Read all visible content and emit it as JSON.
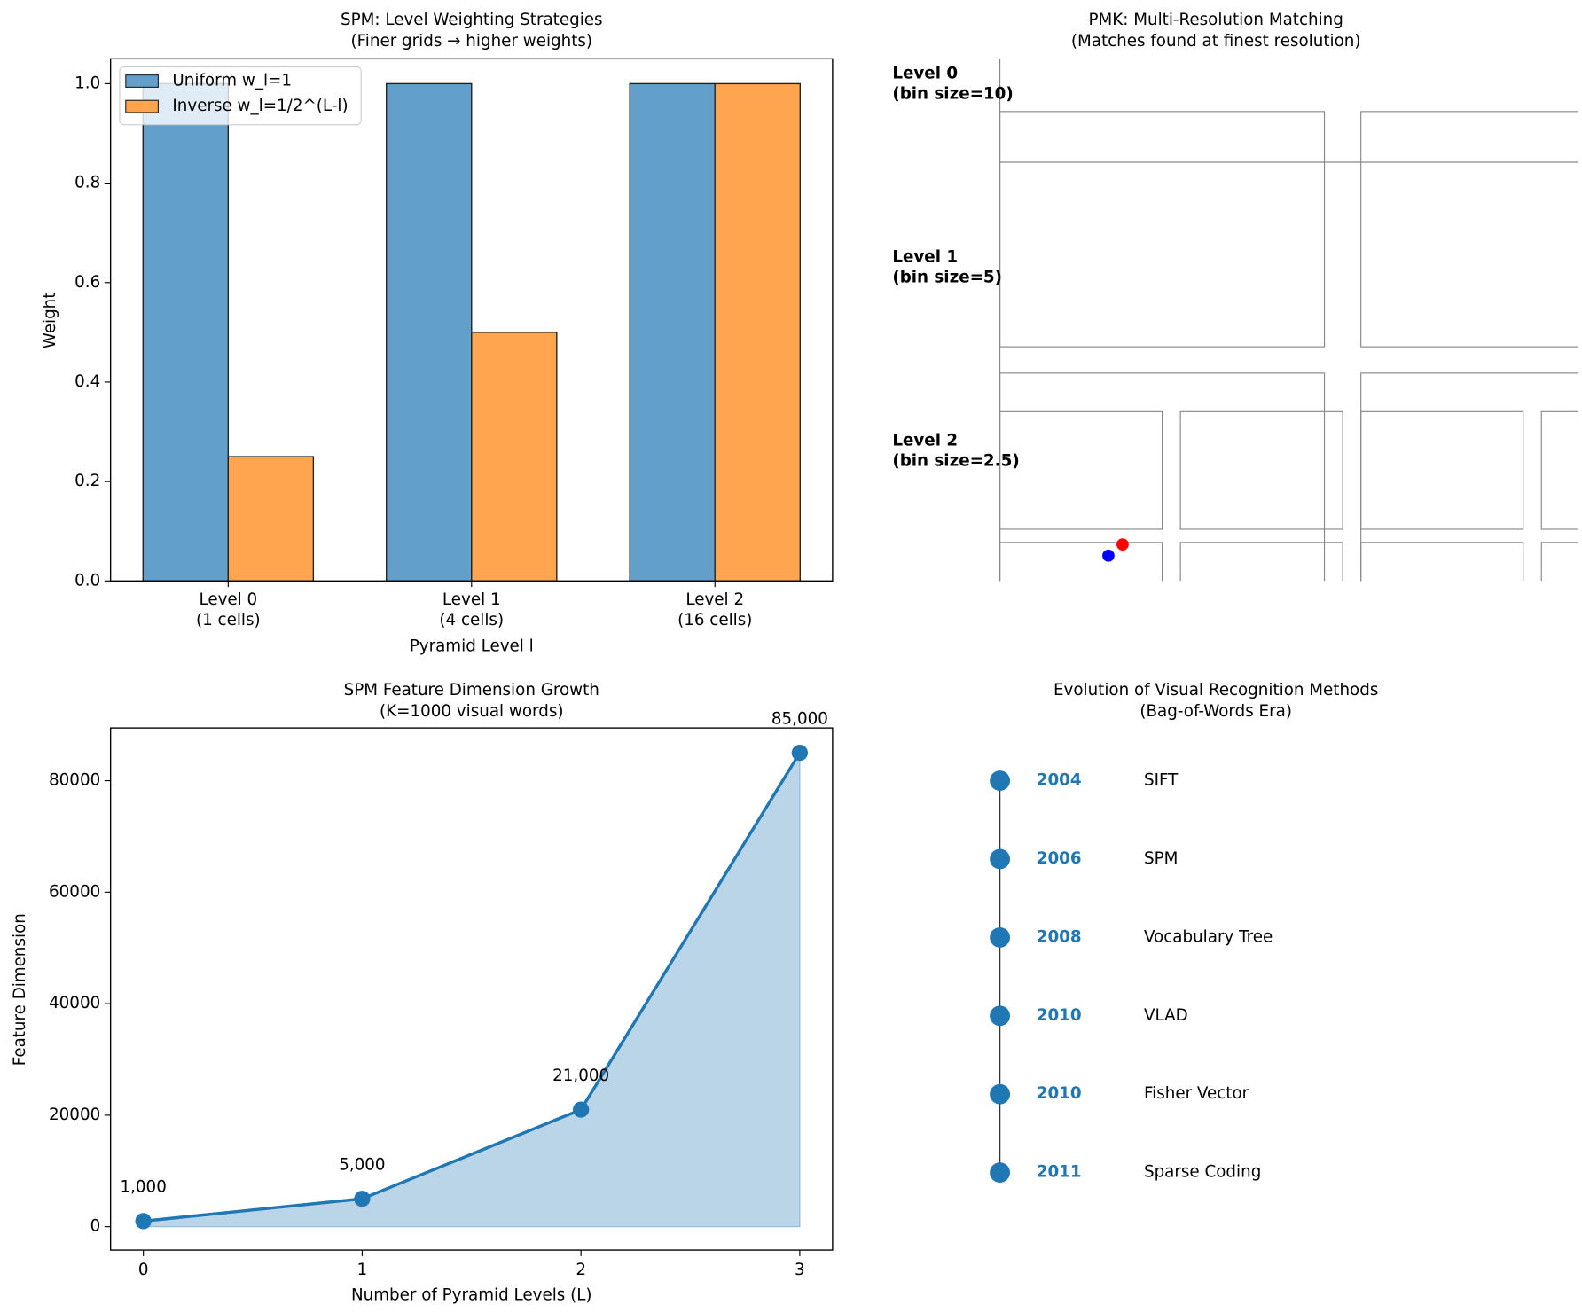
{
  "chart_data": [
    {
      "type": "bar",
      "title": "SPM: Level Weighting Strategies",
      "subtitle": "(Finer grids → higher weights)",
      "categories": [
        "Level 0\n(1 cells)",
        "Level 1\n(4 cells)",
        "Level 2\n(16 cells)"
      ],
      "series": [
        {
          "name": "Uniform w_l=1",
          "color": "#639fcb",
          "values": [
            1,
            1,
            1
          ]
        },
        {
          "name": "Inverse w_l=1/2^(L-l)",
          "color": "#ffa54f",
          "values": [
            0.25,
            0.5,
            1
          ]
        }
      ],
      "xlabel": "Pyramid Level l",
      "ylabel": "Weight",
      "ylim": [
        0,
        1.05
      ],
      "yticks": [
        {
          "value": 0,
          "label": "0.0"
        },
        0.2,
        0.4,
        0.6,
        0.8,
        {
          "value": 1,
          "label": "1.0"
        }
      ],
      "legend": "upper-left"
    },
    {
      "type": "diagram",
      "title": "PMK: Multi-Resolution Matching",
      "subtitle": "(Matches found at finest resolution)",
      "levels": [
        "Level 0\n(bin size=10)",
        "Level 1\n(bin size=5)",
        "Level 2\n(bin size=2.5)"
      ],
      "point_colors": [
        "blue",
        "red"
      ]
    },
    {
      "type": "line",
      "title": "SPM Feature Dimension Growth",
      "subtitle": "(K=1000 visual words)",
      "x": [
        0,
        1,
        2,
        3
      ],
      "values": [
        1000,
        5000,
        21000,
        85000
      ],
      "value_labels": [
        "1,000",
        "5,000",
        "21,000",
        "85,000"
      ],
      "color": "#1f77b4",
      "fill": "#bad5e8",
      "xlabel": "Number of Pyramid Levels (L)",
      "ylabel": "Feature Dimension",
      "xlim": [
        -0.15,
        3.15
      ],
      "ylim": [
        -4200,
        89450
      ],
      "xticks": [
        0,
        1,
        2,
        3
      ],
      "yticks": [
        0,
        20000,
        40000,
        60000,
        80000
      ]
    },
    {
      "type": "timeline",
      "title": "Evolution of Visual Recognition Methods",
      "subtitle": "(Bag-of-Words Era)",
      "color": "#1f77b4",
      "events": [
        {
          "year": "2004",
          "method": "SIFT"
        },
        {
          "year": "2006",
          "method": "SPM"
        },
        {
          "year": "2008",
          "method": "Vocabulary Tree"
        },
        {
          "year": "2010",
          "method": "VLAD"
        },
        {
          "year": "2010",
          "method": "Fisher Vector"
        },
        {
          "year": "2011",
          "method": "Sparse Coding"
        }
      ]
    }
  ]
}
